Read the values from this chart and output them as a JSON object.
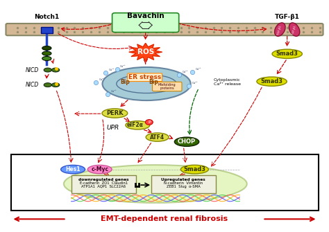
{
  "bg_color": "#ffffff",
  "notch1_label": "Notch1",
  "bavachin_label": "Bavachin",
  "tgf_label": "TGF-β1",
  "ros_label": "ROS",
  "er_stress_label": "ER stress",
  "bip_label": "Bip",
  "misfolding_label": "Misfolding\nproteins",
  "perk_label": "PERK",
  "eif2a_label": "eIF2α",
  "atf4_label": "ATF4",
  "chop_label": "CHOP",
  "upr_label": "UPR",
  "nicd_label": "NICD",
  "hes1_label": "Hes1",
  "cmyc_label": "c-Myc",
  "smad3_label": "Smad3",
  "cytoplasmic_label": "Cytoplasmic\nCa²⁺ release",
  "emt_label": "EMT-dependent renal fibrosis",
  "emt_color": "#cc0000",
  "arrow_color": "#cc0000",
  "green_arrow_color": "#006600"
}
